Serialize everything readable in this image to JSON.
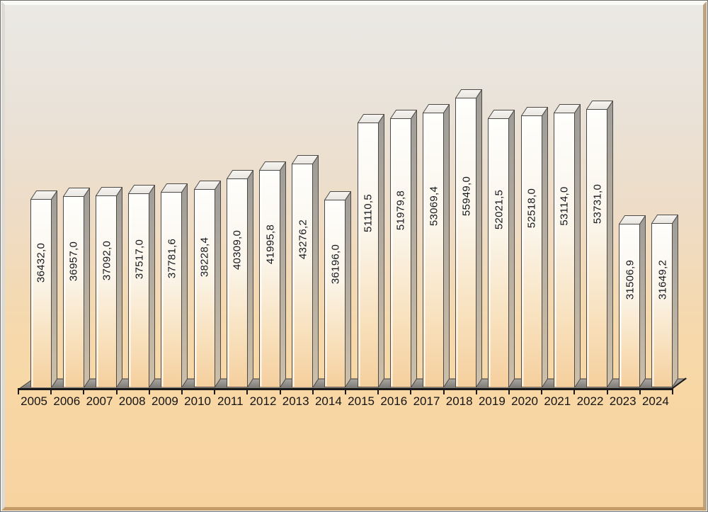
{
  "chart_data": {
    "type": "bar",
    "style": "3d-bar-vertical",
    "title": "",
    "xlabel": "",
    "ylabel": "",
    "legend": false,
    "grid": false,
    "ylim": [
      0,
      60000
    ],
    "categories": [
      "2005",
      "2006",
      "2007",
      "2008",
      "2009",
      "2010",
      "2011",
      "2012",
      "2013",
      "2014",
      "2015",
      "2016",
      "2017",
      "2018",
      "2019",
      "2020",
      "2021",
      "2022",
      "2023",
      "2024"
    ],
    "values": [
      36432.0,
      36957.0,
      37092.0,
      37517.0,
      37781.6,
      38228.4,
      40309.0,
      41995.8,
      43276.2,
      36196.0,
      51110.5,
      51979.8,
      53069.4,
      55949.0,
      52021.5,
      52518.0,
      53114.0,
      53731.0,
      31506.9,
      31649.2
    ],
    "value_labels": [
      "36432,0",
      "36957,0",
      "37092,0",
      "37517,0",
      "37781,6",
      "38228,4",
      "40309,0",
      "41995,8",
      "43276,2",
      "36196,0",
      "51110,5",
      "51979,8",
      "53069,4",
      "55949,0",
      "52021,5",
      "52518,0",
      "53114,0",
      "53731,0",
      "31506,9",
      "31649,2"
    ],
    "decimal_separator": ",",
    "colors": {
      "bar_front_top": "#fefefc",
      "bar_front_bottom": "#f5cf9d",
      "bar_side_top": "#9f9c98",
      "bar_side_bottom": "#cdbfa8",
      "bar_top_face": "#f1eeea",
      "bar_outline": "#4d4a45",
      "floor_top": "#aba8a3",
      "floor_bottom": "#787571",
      "axis_color": "#1a1a1a",
      "label_color": "#141414",
      "background_top": "#ebe9e5",
      "background_bottom": "#f7d3a0"
    }
  }
}
